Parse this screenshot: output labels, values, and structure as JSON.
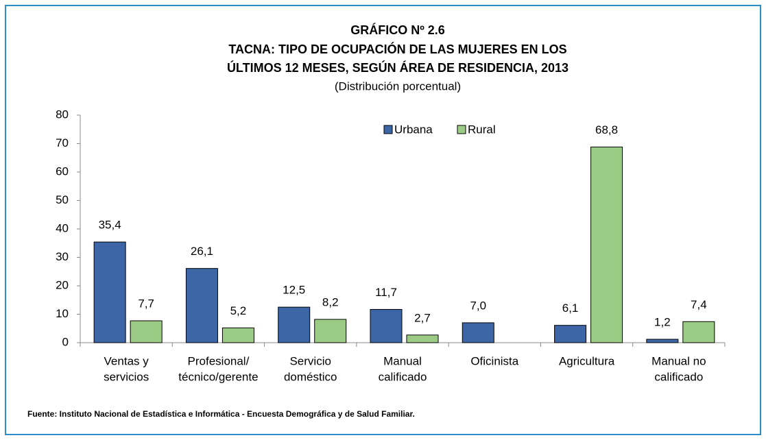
{
  "chart_data": {
    "type": "bar",
    "title": [
      "GRÁFICO Nº 2.6",
      "TACNA: TIPO DE OCUPACIÓN DE LAS MUJERES EN LOS",
      "ÚLTIMOS 12 MESES, SEGÚN ÁREA DE RESIDENCIA, 2013"
    ],
    "subtitle": "(Distribución porcentual)",
    "categories": [
      [
        "Ventas y",
        "servicios"
      ],
      [
        "Profesional/",
        "técnico/gerente"
      ],
      [
        "Servicio",
        "doméstico"
      ],
      [
        "Manual",
        "calificado"
      ],
      [
        "Oficinista"
      ],
      [
        "Agricultura"
      ],
      [
        "Manual no",
        "calificado"
      ]
    ],
    "series": [
      {
        "name": "Urbana",
        "color": "#3c66a6",
        "values": [
          35.4,
          26.1,
          12.5,
          11.7,
          7.0,
          6.1,
          1.2
        ],
        "value_labels": [
          "35,4",
          "26,1",
          "12,5",
          "11,7",
          "7,0",
          "6,1",
          "1,2"
        ]
      },
      {
        "name": "Rural",
        "color": "#9bcb84",
        "values": [
          7.7,
          5.2,
          8.2,
          2.7,
          null,
          68.8,
          7.4
        ],
        "value_labels": [
          "7,7",
          "5,2",
          "8,2",
          "2,7",
          null,
          "68,8",
          "7,4"
        ]
      }
    ],
    "ylim": [
      0,
      80
    ],
    "yticks": [
      0,
      10,
      20,
      30,
      40,
      50,
      60,
      70,
      80
    ],
    "grid": false,
    "legend": "top",
    "source": "Fuente: Instituto Nacional de Estadística e Informática - Encuesta Demográfica y de Salud Familiar."
  }
}
